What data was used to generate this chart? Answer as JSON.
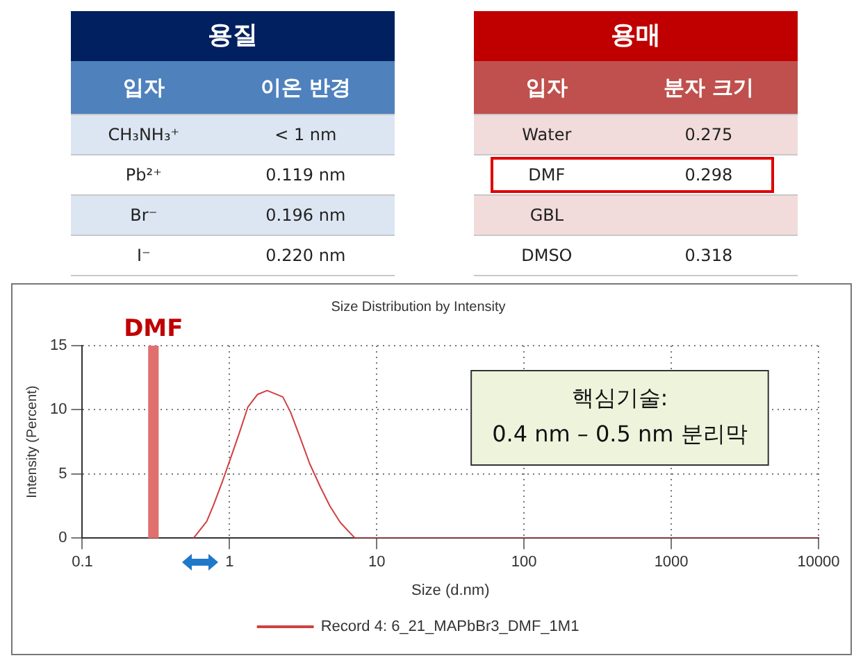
{
  "chart_data": [
    {
      "type": "other",
      "title": "용질",
      "annotations": [
        "입자",
        "이온 반경",
        "CH₃NH₃⁺",
        "< 1 nm",
        "Pb²⁺",
        "0.119 nm",
        "Br⁻",
        "0.196 nm",
        "I⁻",
        "0.220 nm"
      ]
    },
    {
      "type": "other",
      "title": "용매",
      "annotations": [
        "입자",
        "분자 크기",
        "Water",
        "0.275",
        "DMF",
        "0.298",
        "GBL",
        null,
        "DMSO",
        "0.318"
      ]
    },
    {
      "type": "line",
      "title": "Size Distribution by Intensity",
      "xlabel": "Size (d.nm)",
      "ylabel": "Intensity (Percent)",
      "log": "x",
      "xlim": [
        0.1,
        10000
      ],
      "xticks": [
        0.1,
        1,
        10,
        100,
        1000,
        10000
      ],
      "ylim": [
        0,
        15
      ],
      "yticks": [
        0,
        5,
        10,
        15
      ],
      "grid": true,
      "legend": "bottom",
      "marker": "none",
      "line_style": "solid",
      "bands": [
        {
          "axis": "x",
          "from": 0.28,
          "to": 0.33,
          "label": "DMF",
          "color": "#e07070"
        }
      ],
      "annotations": [
        "핵심기술:",
        "0.4 nm – 0.5 nm 분리막"
      ],
      "series": [
        {
          "name": "Record 4: 6_21_MAPbBr3_DMF_1M1",
          "color": "#d04040",
          "x": [
            0.57,
            0.7,
            0.78,
            0.9,
            1,
            1.15,
            1.33,
            1.55,
            1.8,
            2.3,
            2.6,
            3,
            3.5,
            4.13,
            4.8,
            5.66,
            7.1,
            10000
          ],
          "values": [
            0,
            1.3,
            2.6,
            4.5,
            6,
            8,
            10.2,
            11.2,
            11.5,
            11,
            9.8,
            7.9,
            5.8,
            4,
            2.5,
            1.2,
            0,
            0
          ]
        }
      ]
    }
  ]
}
